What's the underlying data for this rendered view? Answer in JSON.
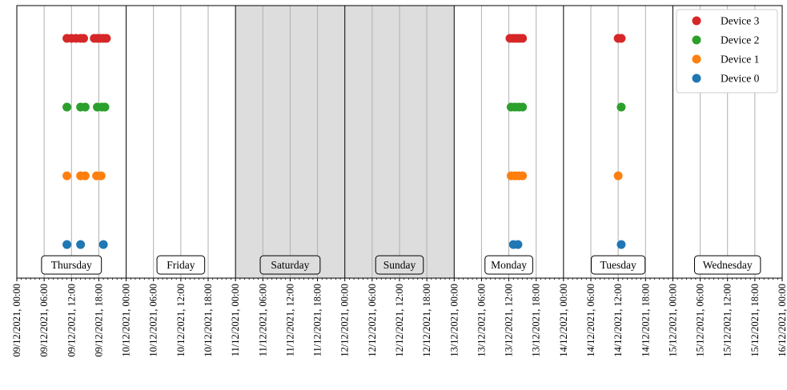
{
  "chart_data": {
    "type": "scatter",
    "x_range": [
      "09/12/2021, 00:00",
      "16/12/2021, 00:00"
    ],
    "x_tick_labels": [
      "09/12/2021, 00:00",
      "09/12/2021, 06:00",
      "09/12/2021, 12:00",
      "09/12/2021, 18:00",
      "10/12/2021, 00:00",
      "10/12/2021, 06:00",
      "10/12/2021, 12:00",
      "10/12/2021, 18:00",
      "11/12/2021, 00:00",
      "11/12/2021, 06:00",
      "11/12/2021, 12:00",
      "11/12/2021, 18:00",
      "12/12/2021, 00:00",
      "12/12/2021, 06:00",
      "12/12/2021, 12:00",
      "12/12/2021, 18:00",
      "13/12/2021, 00:00",
      "13/12/2021, 06:00",
      "13/12/2021, 12:00",
      "13/12/2021, 18:00",
      "14/12/2021, 00:00",
      "14/12/2021, 06:00",
      "14/12/2021, 12:00",
      "14/12/2021, 18:00",
      "15/12/2021, 00:00",
      "15/12/2021, 06:00",
      "15/12/2021, 12:00",
      "15/12/2021, 18:00",
      "16/12/2021, 00:00"
    ],
    "day_labels": [
      {
        "date": "09/12/2021",
        "label": "Thursday",
        "weekend": false
      },
      {
        "date": "10/12/2021",
        "label": "Friday",
        "weekend": false
      },
      {
        "date": "11/12/2021",
        "label": "Saturday",
        "weekend": true
      },
      {
        "date": "12/12/2021",
        "label": "Sunday",
        "weekend": true
      },
      {
        "date": "13/12/2021",
        "label": "Monday",
        "weekend": false
      },
      {
        "date": "14/12/2021",
        "label": "Tuesday",
        "weekend": false
      },
      {
        "date": "15/12/2021",
        "label": "Wednesday",
        "weekend": false
      }
    ],
    "minor_ticks_per_hour": true,
    "grid": "vertical, every 6 hours",
    "legend_position": "top-right",
    "series": [
      {
        "name": "Device 3",
        "color": "#d62728",
        "times": [
          "09/12/2021, 11:00",
          "09/12/2021, 12:00",
          "09/12/2021, 13:00",
          "09/12/2021, 14:00",
          "09/12/2021, 14:40",
          "09/12/2021, 17:00",
          "09/12/2021, 17:40",
          "09/12/2021, 18:20",
          "09/12/2021, 19:00",
          "09/12/2021, 19:40",
          "13/12/2021, 12:15",
          "13/12/2021, 13:00",
          "13/12/2021, 13:40",
          "13/12/2021, 14:20",
          "13/12/2021, 15:00",
          "14/12/2021, 12:00",
          "14/12/2021, 12:40"
        ]
      },
      {
        "name": "Device 2",
        "color": "#2ca02c",
        "times": [
          "09/12/2021, 11:00",
          "09/12/2021, 14:00",
          "09/12/2021, 15:00",
          "09/12/2021, 17:40",
          "09/12/2021, 18:40",
          "09/12/2021, 19:20",
          "13/12/2021, 12:30",
          "13/12/2021, 13:20",
          "13/12/2021, 14:10",
          "13/12/2021, 15:00",
          "14/12/2021, 12:40"
        ]
      },
      {
        "name": "Device 1",
        "color": "#ff7f0e",
        "times": [
          "09/12/2021, 11:00",
          "09/12/2021, 14:00",
          "09/12/2021, 15:00",
          "09/12/2021, 17:30",
          "09/12/2021, 18:30",
          "13/12/2021, 12:30",
          "13/12/2021, 13:20",
          "13/12/2021, 14:10",
          "13/12/2021, 15:00",
          "14/12/2021, 12:00"
        ]
      },
      {
        "name": "Device 0",
        "color": "#1f77b4",
        "times": [
          "09/12/2021, 11:00",
          "09/12/2021, 14:00",
          "09/12/2021, 19:00",
          "13/12/2021, 13:00",
          "13/12/2021, 14:00",
          "14/12/2021, 12:40"
        ]
      }
    ]
  }
}
